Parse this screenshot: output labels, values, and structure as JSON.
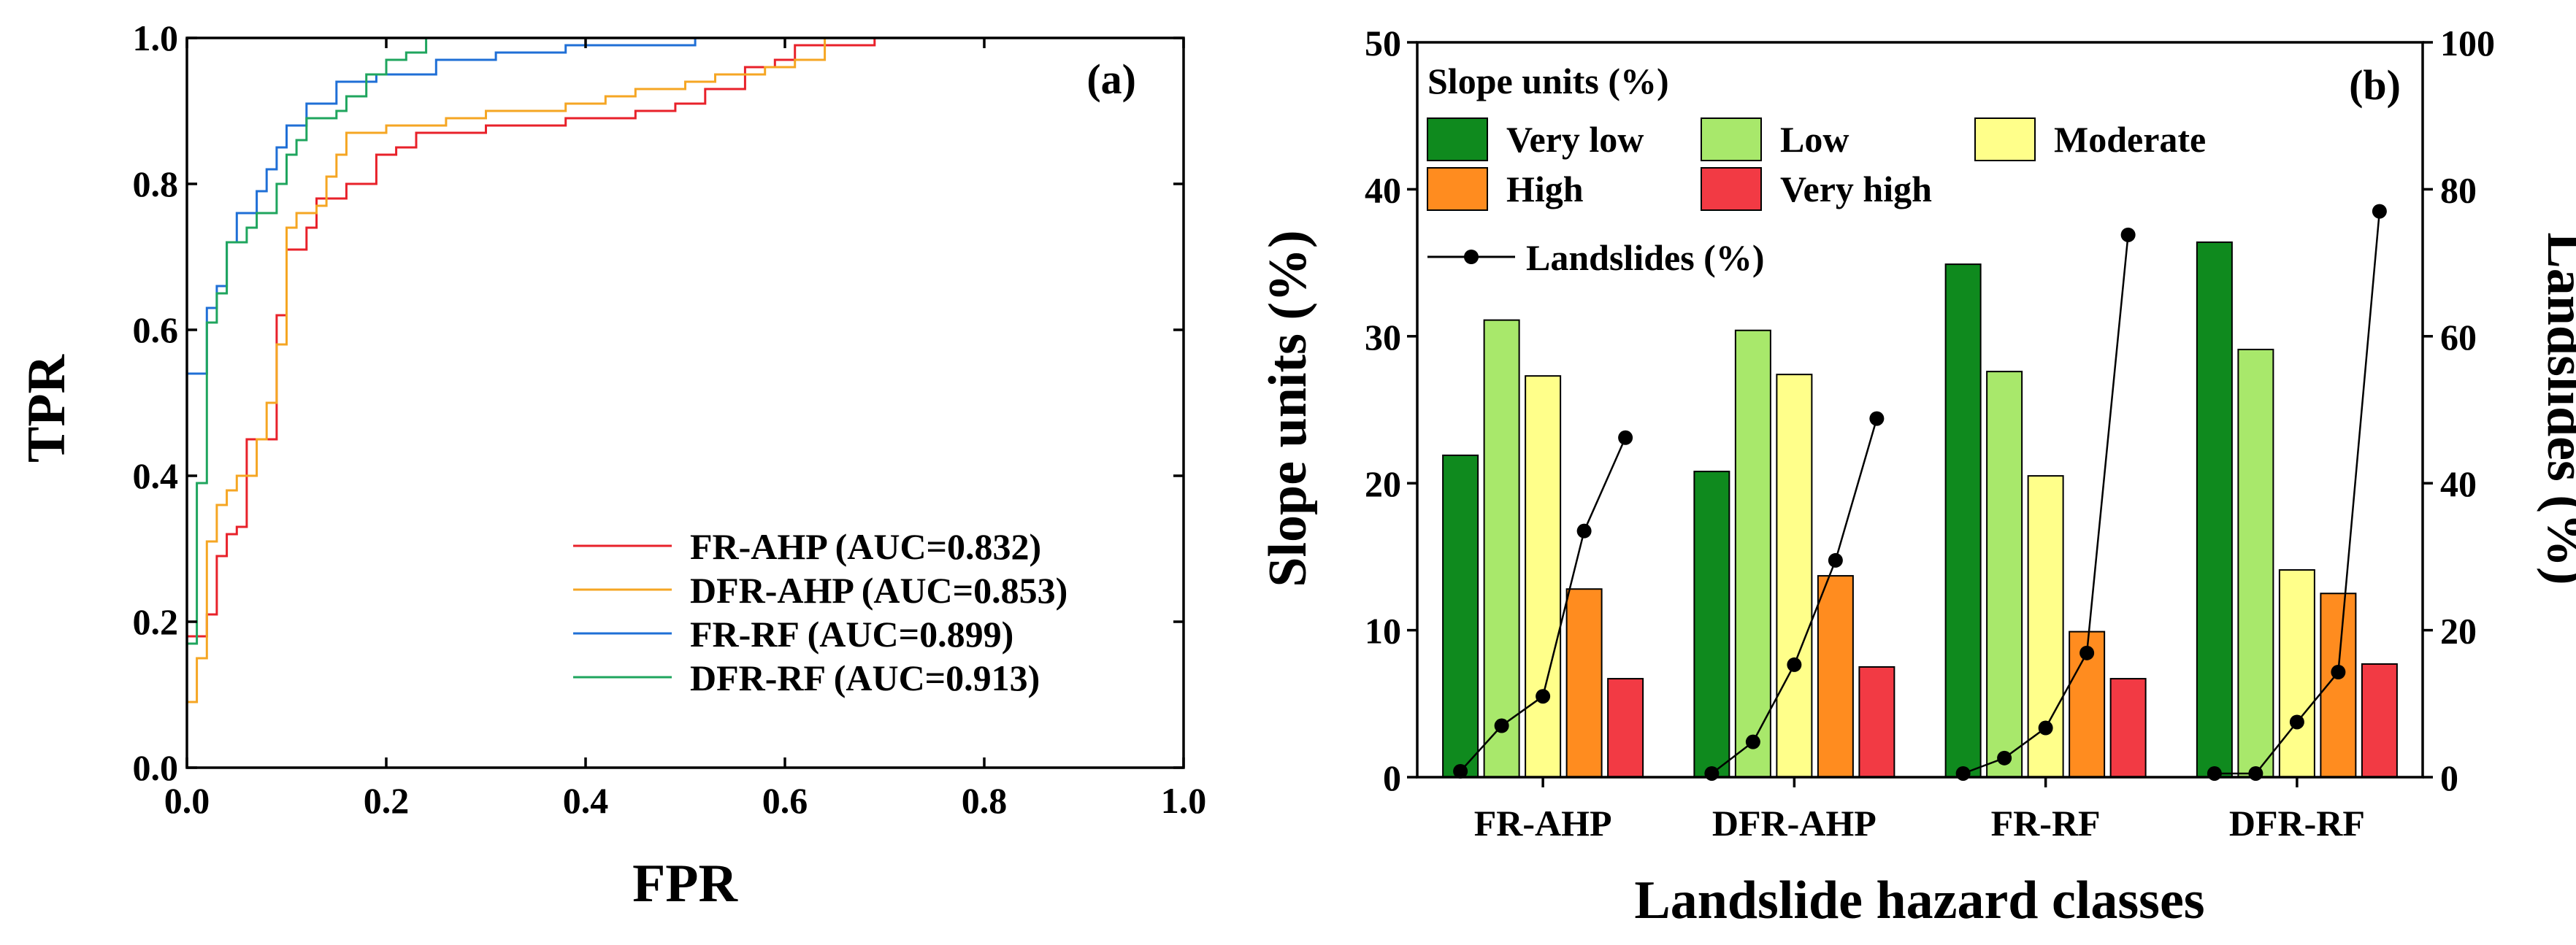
{
  "chart_data": [
    {
      "panel": "(a)",
      "type": "line",
      "xlabel": "FPR",
      "ylabel": "TPR",
      "xlim": [
        0,
        1
      ],
      "ylim": [
        0,
        1
      ],
      "xticks": [
        "0.0",
        "0.2",
        "0.4",
        "0.6",
        "0.8",
        "1.0"
      ],
      "yticks": [
        "0.0",
        "0.2",
        "0.4",
        "0.6",
        "0.8",
        "1.0"
      ],
      "legend_position": "bottom-right",
      "series": [
        {
          "name": "FR-AHP (AUC=0.832)",
          "color": "#e8212a",
          "points": [
            [
              0,
              0
            ],
            [
              0,
              0.18
            ],
            [
              0.02,
              0.18
            ],
            [
              0.02,
              0.21
            ],
            [
              0.03,
              0.21
            ],
            [
              0.03,
              0.29
            ],
            [
              0.04,
              0.29
            ],
            [
              0.04,
              0.32
            ],
            [
              0.05,
              0.32
            ],
            [
              0.05,
              0.33
            ],
            [
              0.06,
              0.33
            ],
            [
              0.06,
              0.45
            ],
            [
              0.08,
              0.45
            ],
            [
              0.08,
              0.45
            ],
            [
              0.09,
              0.45
            ],
            [
              0.09,
              0.62
            ],
            [
              0.1,
              0.62
            ],
            [
              0.1,
              0.71
            ],
            [
              0.12,
              0.71
            ],
            [
              0.12,
              0.74
            ],
            [
              0.13,
              0.74
            ],
            [
              0.13,
              0.78
            ],
            [
              0.16,
              0.78
            ],
            [
              0.16,
              0.8
            ],
            [
              0.19,
              0.8
            ],
            [
              0.19,
              0.84
            ],
            [
              0.21,
              0.84
            ],
            [
              0.21,
              0.85
            ],
            [
              0.23,
              0.85
            ],
            [
              0.23,
              0.87
            ],
            [
              0.3,
              0.87
            ],
            [
              0.3,
              0.88
            ],
            [
              0.38,
              0.88
            ],
            [
              0.38,
              0.89
            ],
            [
              0.45,
              0.89
            ],
            [
              0.45,
              0.9
            ],
            [
              0.49,
              0.9
            ],
            [
              0.49,
              0.91
            ],
            [
              0.52,
              0.91
            ],
            [
              0.52,
              0.93
            ],
            [
              0.56,
              0.93
            ],
            [
              0.56,
              0.96
            ],
            [
              0.59,
              0.96
            ],
            [
              0.59,
              0.97
            ],
            [
              0.61,
              0.97
            ],
            [
              0.61,
              0.99
            ],
            [
              0.63,
              0.99
            ],
            [
              0.63,
              0.99
            ],
            [
              0.69,
              0.99
            ],
            [
              0.69,
              1.0
            ],
            [
              1.0,
              1.0
            ]
          ]
        },
        {
          "name": "DFR-AHP (AUC=0.853)",
          "color": "#f5a623",
          "points": [
            [
              0,
              0
            ],
            [
              0,
              0.09
            ],
            [
              0.01,
              0.09
            ],
            [
              0.01,
              0.15
            ],
            [
              0.02,
              0.15
            ],
            [
              0.02,
              0.31
            ],
            [
              0.03,
              0.31
            ],
            [
              0.03,
              0.36
            ],
            [
              0.04,
              0.36
            ],
            [
              0.04,
              0.38
            ],
            [
              0.05,
              0.38
            ],
            [
              0.05,
              0.4
            ],
            [
              0.07,
              0.4
            ],
            [
              0.07,
              0.45
            ],
            [
              0.08,
              0.45
            ],
            [
              0.08,
              0.5
            ],
            [
              0.09,
              0.5
            ],
            [
              0.09,
              0.58
            ],
            [
              0.1,
              0.58
            ],
            [
              0.1,
              0.74
            ],
            [
              0.11,
              0.74
            ],
            [
              0.11,
              0.76
            ],
            [
              0.13,
              0.76
            ],
            [
              0.13,
              0.77
            ],
            [
              0.14,
              0.77
            ],
            [
              0.14,
              0.81
            ],
            [
              0.15,
              0.81
            ],
            [
              0.15,
              0.84
            ],
            [
              0.16,
              0.84
            ],
            [
              0.16,
              0.87
            ],
            [
              0.2,
              0.87
            ],
            [
              0.2,
              0.88
            ],
            [
              0.26,
              0.88
            ],
            [
              0.26,
              0.89
            ],
            [
              0.3,
              0.89
            ],
            [
              0.3,
              0.9
            ],
            [
              0.38,
              0.9
            ],
            [
              0.38,
              0.91
            ],
            [
              0.42,
              0.91
            ],
            [
              0.42,
              0.92
            ],
            [
              0.45,
              0.92
            ],
            [
              0.45,
              0.93
            ],
            [
              0.5,
              0.93
            ],
            [
              0.5,
              0.94
            ],
            [
              0.53,
              0.94
            ],
            [
              0.53,
              0.95
            ],
            [
              0.58,
              0.95
            ],
            [
              0.58,
              0.96
            ],
            [
              0.61,
              0.96
            ],
            [
              0.61,
              0.97
            ],
            [
              0.64,
              0.97
            ],
            [
              0.64,
              1.0
            ],
            [
              1.0,
              1.0
            ]
          ]
        },
        {
          "name": "FR-RF (AUC=0.899)",
          "color": "#1f6fd6",
          "points": [
            [
              0,
              0
            ],
            [
              0,
              0.54
            ],
            [
              0.02,
              0.54
            ],
            [
              0.02,
              0.63
            ],
            [
              0.03,
              0.63
            ],
            [
              0.03,
              0.66
            ],
            [
              0.04,
              0.66
            ],
            [
              0.04,
              0.72
            ],
            [
              0.05,
              0.72
            ],
            [
              0.05,
              0.76
            ],
            [
              0.07,
              0.76
            ],
            [
              0.07,
              0.79
            ],
            [
              0.08,
              0.79
            ],
            [
              0.08,
              0.82
            ],
            [
              0.09,
              0.82
            ],
            [
              0.09,
              0.85
            ],
            [
              0.1,
              0.85
            ],
            [
              0.1,
              0.88
            ],
            [
              0.12,
              0.88
            ],
            [
              0.12,
              0.91
            ],
            [
              0.15,
              0.91
            ],
            [
              0.15,
              0.94
            ],
            [
              0.19,
              0.94
            ],
            [
              0.19,
              0.95
            ],
            [
              0.25,
              0.95
            ],
            [
              0.25,
              0.97
            ],
            [
              0.31,
              0.97
            ],
            [
              0.31,
              0.98
            ],
            [
              0.38,
              0.98
            ],
            [
              0.38,
              0.99
            ],
            [
              0.45,
              0.99
            ],
            [
              0.45,
              0.99
            ],
            [
              0.51,
              0.99
            ],
            [
              0.51,
              1.0
            ],
            [
              1.0,
              1.0
            ]
          ]
        },
        {
          "name": "DFR-RF (AUC=0.913)",
          "color": "#1fa55e",
          "points": [
            [
              0,
              0
            ],
            [
              0,
              0.17
            ],
            [
              0.01,
              0.17
            ],
            [
              0.01,
              0.39
            ],
            [
              0.02,
              0.39
            ],
            [
              0.02,
              0.61
            ],
            [
              0.03,
              0.61
            ],
            [
              0.03,
              0.65
            ],
            [
              0.04,
              0.65
            ],
            [
              0.04,
              0.72
            ],
            [
              0.06,
              0.72
            ],
            [
              0.06,
              0.74
            ],
            [
              0.07,
              0.74
            ],
            [
              0.07,
              0.76
            ],
            [
              0.09,
              0.76
            ],
            [
              0.09,
              0.8
            ],
            [
              0.1,
              0.8
            ],
            [
              0.1,
              0.84
            ],
            [
              0.11,
              0.84
            ],
            [
              0.11,
              0.86
            ],
            [
              0.12,
              0.86
            ],
            [
              0.12,
              0.89
            ],
            [
              0.15,
              0.89
            ],
            [
              0.15,
              0.9
            ],
            [
              0.16,
              0.9
            ],
            [
              0.16,
              0.92
            ],
            [
              0.18,
              0.92
            ],
            [
              0.18,
              0.95
            ],
            [
              0.2,
              0.95
            ],
            [
              0.2,
              0.97
            ],
            [
              0.22,
              0.97
            ],
            [
              0.22,
              0.98
            ],
            [
              0.24,
              0.98
            ],
            [
              0.24,
              1.0
            ],
            [
              1.0,
              1.0
            ]
          ]
        }
      ]
    },
    {
      "panel": "(b)",
      "type": "bar",
      "xlabel": "Landslide hazard classes",
      "ylabel": "Slope units (%)",
      "y2label": "Landslides (%)",
      "ylim": [
        0,
        50
      ],
      "y2lim": [
        0,
        100
      ],
      "yticks": [
        "0",
        "10",
        "20",
        "30",
        "40",
        "50"
      ],
      "y2ticks": [
        "0",
        "20",
        "40",
        "60",
        "80",
        "100"
      ],
      "categories": [
        "FR-AHP",
        "DFR-AHP",
        "FR-RF",
        "DFR-RF"
      ],
      "legend_title": "Slope units (%)",
      "legend_position": "top-left",
      "series": [
        {
          "name": "Very low",
          "color": "#0f8a1e",
          "values": [
            21.9,
            20.8,
            34.9,
            36.4
          ]
        },
        {
          "name": "Low",
          "color": "#a8e86b",
          "values": [
            31.1,
            30.4,
            27.6,
            29.1
          ]
        },
        {
          "name": "Moderate",
          "color": "#ffff8a",
          "values": [
            27.3,
            27.4,
            20.5,
            14.1
          ]
        },
        {
          "name": "High",
          "color": "#ff8c1f",
          "values": [
            12.8,
            13.7,
            9.9,
            12.5
          ]
        },
        {
          "name": "Very high",
          "color": "#f23a44",
          "values": [
            6.7,
            7.5,
            6.7,
            7.7
          ]
        }
      ],
      "line_series": {
        "name": "Landslides (%)",
        "axis": "right",
        "values": [
          [
            0.8,
            7.0,
            11.0,
            33.5,
            46.2
          ],
          [
            0.5,
            4.8,
            15.3,
            29.5,
            48.8
          ],
          [
            0.5,
            2.6,
            6.7,
            16.9,
            73.8
          ],
          [
            0.5,
            0.5,
            7.5,
            14.3,
            77.0
          ]
        ]
      }
    }
  ]
}
